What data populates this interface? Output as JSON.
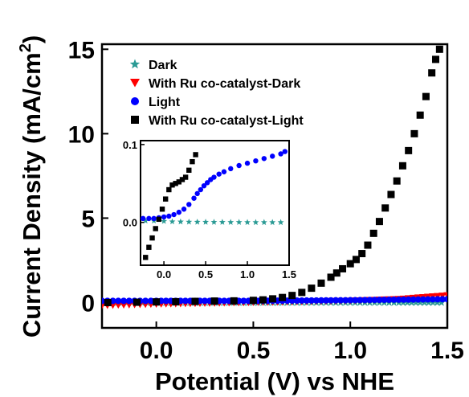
{
  "chart_data": [
    {
      "type": "scatter",
      "xlabel": "Potential (V) vs NHE",
      "ylabel": "Current Density (mA/cm",
      "ylabel_sup": "2",
      "ylabel_end": ")",
      "xlim": [
        -0.28,
        1.5
      ],
      "ylim": [
        -1.5,
        15.3
      ],
      "x_ticks": [
        0.0,
        0.5,
        1.0,
        1.5
      ],
      "x_tick_labels": [
        "0.0",
        "0.5",
        "1.0",
        "1.5"
      ],
      "y_ticks": [
        0,
        5,
        10,
        15
      ],
      "y_tick_labels": [
        "0",
        "5",
        "10",
        "15"
      ],
      "legend_position": "top-left",
      "series": [
        {
          "name": "Dark",
          "marker": "star",
          "color": "#2a9a94",
          "x": [
            -0.25,
            0.0,
            0.25,
            0.5,
            0.75,
            1.0,
            1.25,
            1.47
          ],
          "y": [
            0.0,
            0.0,
            0.0,
            0.0,
            0.0,
            0.0,
            0.0,
            0.0
          ]
        },
        {
          "name": "With Ru co-catalyst-Dark",
          "marker": "triangle-down",
          "color": "#ff0000",
          "x": [
            -0.28,
            0.0,
            0.25,
            0.5,
            0.75,
            1.0,
            1.25,
            1.5
          ],
          "y": [
            -0.18,
            -0.1,
            -0.05,
            0.0,
            0.05,
            0.1,
            0.2,
            0.42
          ]
        },
        {
          "name": "Light",
          "marker": "circle",
          "color": "#0000ff",
          "x": [
            -0.28,
            0.0,
            0.25,
            0.5,
            0.75,
            1.0,
            1.25,
            1.5
          ],
          "y": [
            0.1,
            0.1,
            0.1,
            0.1,
            0.12,
            0.14,
            0.17,
            0.2
          ]
        },
        {
          "name": "With Ru co-catalyst-Light",
          "marker": "square",
          "color": "#000000",
          "x": [
            -0.25,
            -0.1,
            0.0,
            0.1,
            0.2,
            0.3,
            0.4,
            0.5,
            0.55,
            0.6,
            0.65,
            0.7,
            0.75,
            0.8,
            0.85,
            0.9,
            0.93,
            0.96,
            1.0,
            1.03,
            1.06,
            1.09,
            1.12,
            1.15,
            1.18,
            1.21,
            1.24,
            1.27,
            1.3,
            1.33,
            1.36,
            1.39,
            1.42,
            1.44,
            1.46
          ],
          "y": [
            0.0,
            0.02,
            0.04,
            0.05,
            0.07,
            0.09,
            0.1,
            0.13,
            0.16,
            0.22,
            0.3,
            0.42,
            0.6,
            0.85,
            1.15,
            1.5,
            1.75,
            2.0,
            2.3,
            2.55,
            2.9,
            3.4,
            4.1,
            4.8,
            5.6,
            6.4,
            7.2,
            8.1,
            9.0,
            10.0,
            11.1,
            12.2,
            13.6,
            14.4,
            15.0
          ]
        }
      ]
    },
    {
      "type": "scatter",
      "role": "inset",
      "xlim": [
        -0.28,
        1.5
      ],
      "ylim": [
        -0.055,
        0.105
      ],
      "x_ticks": [
        0.0,
        0.5,
        1.0,
        1.5
      ],
      "x_tick_labels": [
        "0.0",
        "0.5",
        "1.0",
        "1.5"
      ],
      "y_ticks": [
        0.0,
        0.1
      ],
      "y_tick_labels": [
        "0.0",
        "0.1"
      ],
      "series": [
        {
          "name": "Dark",
          "marker": "star",
          "color": "#2a9a94",
          "x": [
            -0.22,
            -0.12,
            0.0,
            0.1,
            0.2,
            0.3,
            0.4,
            0.5,
            0.6,
            0.7,
            0.8,
            0.9,
            1.0,
            1.1,
            1.2,
            1.3,
            1.4
          ],
          "y": [
            0.002,
            0.002,
            0.0015,
            0.001,
            0.0008,
            0.0006,
            0.0005,
            0.0004,
            0.0003,
            0.0003,
            0.0002,
            0.0002,
            0.0001,
            0.0,
            0.0,
            0.0,
            0.0
          ]
        },
        {
          "name": "Light",
          "marker": "circle",
          "color": "#0000ff",
          "x": [
            -0.25,
            -0.18,
            -0.12,
            -0.06,
            0.0,
            0.06,
            0.12,
            0.18,
            0.24,
            0.3,
            0.36,
            0.4,
            0.44,
            0.48,
            0.52,
            0.56,
            0.6,
            0.66,
            0.72,
            0.8,
            0.9,
            1.0,
            1.1,
            1.2,
            1.3,
            1.4,
            1.45
          ],
          "y": [
            0.005,
            0.005,
            0.005,
            0.006,
            0.007,
            0.008,
            0.01,
            0.013,
            0.017,
            0.023,
            0.031,
            0.037,
            0.042,
            0.047,
            0.051,
            0.055,
            0.058,
            0.062,
            0.065,
            0.069,
            0.073,
            0.076,
            0.079,
            0.082,
            0.085,
            0.088,
            0.091
          ]
        },
        {
          "name": "With Ru co-catalyst-Light",
          "marker": "square",
          "color": "#000000",
          "x": [
            -0.22,
            -0.18,
            -0.14,
            -0.1,
            -0.06,
            -0.02,
            0.02,
            0.06,
            0.1,
            0.14,
            0.18,
            0.22,
            0.26,
            0.3,
            0.34,
            0.38
          ],
          "y": [
            -0.045,
            -0.032,
            -0.02,
            -0.008,
            0.004,
            0.017,
            0.03,
            0.042,
            0.048,
            0.05,
            0.052,
            0.055,
            0.058,
            0.067,
            0.078,
            0.087
          ]
        }
      ]
    }
  ]
}
